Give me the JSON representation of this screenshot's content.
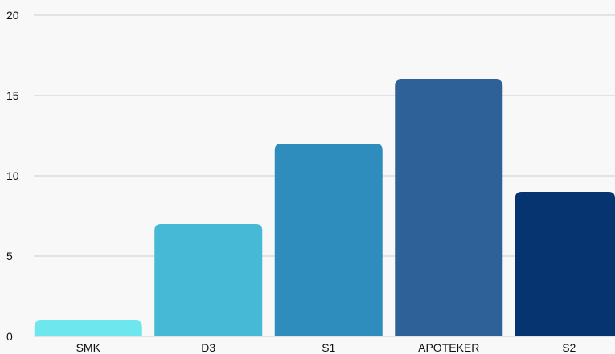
{
  "chart_data": {
    "type": "bar",
    "title": "",
    "xlabel": "",
    "ylabel": "",
    "categories": [
      "SMK",
      "D3",
      "S1",
      "APOTEKER",
      "S2"
    ],
    "values": [
      1,
      7,
      12,
      16,
      9
    ],
    "ylim": [
      0,
      20
    ],
    "yticks": [
      "0",
      "5",
      "10",
      "15",
      "20"
    ],
    "grid": true,
    "legend": "none",
    "colors": [
      "#6ee6ee",
      "#45b9d6",
      "#2e8dbc",
      "#2f6199",
      "#063470"
    ],
    "gridline_color": "#cccccc",
    "background": "#f8f8f8"
  }
}
